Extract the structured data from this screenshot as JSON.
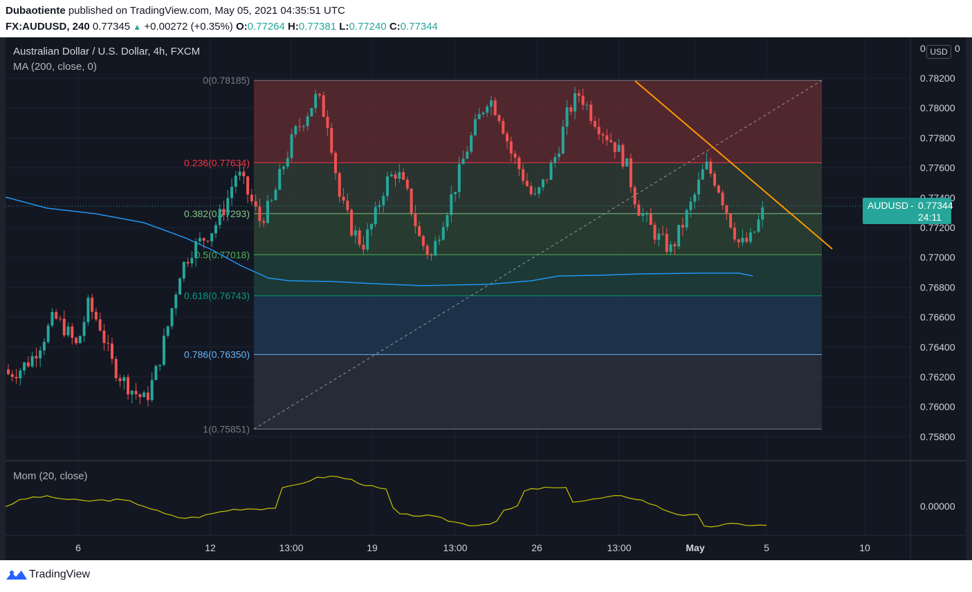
{
  "header": {
    "author": "Dubaotiente",
    "published": "published on TradingView.com, May 05, 2021 04:35:51 UTC",
    "symbol": "FX:AUDUSD, 240",
    "last": "0.77345",
    "change": "+0.00272 (+0.35%)",
    "o_label": "O:",
    "o_value": "0.77264",
    "h_label": "H:",
    "h_value": "0.77381",
    "l_label": "L:",
    "l_value": "0.77240",
    "c_label": "C:",
    "c_value": "0.77344"
  },
  "chart": {
    "title": "Australian Dollar / U.S. Dollar, 4h, FXCM",
    "ma_label": "MA (200, close, 0)",
    "currency_button": "USD",
    "price_tag_symbol": "AUDUSD",
    "price_tag_price": "0.77344",
    "price_tag_countdown": "24:11",
    "price_axis": [
      "0.78200",
      "0.78000",
      "0.77800",
      "0.77600",
      "0.77400",
      "0.77200",
      "0.77000",
      "0.76800",
      "0.76600",
      "0.76400",
      "0.76200",
      "0.76000",
      "0.75800"
    ],
    "price_axis_top_partial": "0",
    "price_axis_top_partial_right": "0",
    "time_axis": [
      "6",
      "12",
      "13:00",
      "19",
      "13:00",
      "26",
      "13:00",
      "May",
      "5",
      "10"
    ],
    "fib_levels": [
      {
        "label": "0(0.78185)",
        "color": "#787b86"
      },
      {
        "label": "0.236(0.77634)",
        "color": "#f23645"
      },
      {
        "label": "0.382(0.77293)",
        "color": "#81c784"
      },
      {
        "label": "0.5(0.77018)",
        "color": "#4caf50"
      },
      {
        "label": "0.618(0.76743)",
        "color": "#089981"
      },
      {
        "label": "0.786(0.76350)",
        "color": "#64b5f6"
      },
      {
        "label": "1(0.75851)",
        "color": "#787b86"
      }
    ],
    "colors": {
      "up": "#26a69a",
      "down": "#ef5350",
      "ma": "#2196f3",
      "trendline": "#ff9800",
      "momentum": "#c7c400"
    }
  },
  "indicator": {
    "label": "Mom (20, close)",
    "axis_value": "0.00000"
  },
  "footer": {
    "brand": "TradingView",
    "logo_icon": "tradingview-logo-icon"
  }
}
